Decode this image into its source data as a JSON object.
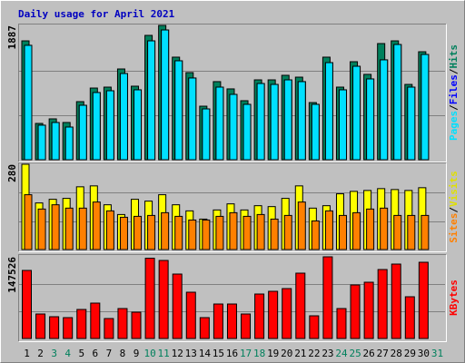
{
  "chart_data": [
    {
      "type": "bar",
      "title": "Daily usage for April 2021",
      "series": [
        {
          "name": "Hits",
          "color": "#00805c",
          "values": [
            1670,
            510,
            574,
            523,
            816,
            1007,
            1020,
            1275,
            1033,
            1747,
            1887,
            1441,
            1224,
            752,
            1097,
            995,
            829,
            1122,
            1122,
            1186,
            1160,
            803,
            1441,
            1020,
            1377,
            1199,
            1632,
            1670,
            1058,
            1517,
            0
          ]
        },
        {
          "name": "Files",
          "color": "#0000ff",
          "values": [
            1607,
            485,
            523,
            459,
            765,
            944,
            969,
            1211,
            982,
            1670,
            1823,
            1390,
            1148,
            714,
            1020,
            918,
            778,
            1071,
            1058,
            1122,
            1097,
            778,
            1364,
            982,
            1313,
            1135,
            1403,
            1619,
            1020,
            1479,
            0
          ]
        },
        {
          "name": "Pages",
          "color": "#00e0ff",
          "values": [
            1607,
            485,
            523,
            459,
            765,
            944,
            969,
            1211,
            982,
            1670,
            1823,
            1390,
            1148,
            714,
            1020,
            918,
            778,
            1071,
            1058,
            1122,
            1097,
            778,
            1364,
            982,
            1313,
            1135,
            1403,
            1619,
            1020,
            1479,
            0
          ]
        }
      ],
      "legend_separator": "/",
      "ylim": [
        0,
        1887
      ],
      "yticks": [
        1887
      ],
      "gridlines": [
        625,
        1250
      ]
    },
    {
      "type": "bar",
      "series": [
        {
          "name": "Visits",
          "color": "#ffff00",
          "values": [
            280,
            153,
            165,
            168,
            206,
            209,
            147,
            115,
            165,
            159,
            180,
            147,
            127,
            100,
            130,
            150,
            130,
            144,
            141,
            168,
            209,
            136,
            144,
            183,
            191,
            194,
            200,
            197,
            194,
            203,
            0
          ]
        },
        {
          "name": "Sites",
          "color": "#ff8000",
          "values": [
            180,
            133,
            147,
            136,
            136,
            156,
            127,
            106,
            109,
            112,
            121,
            109,
            97,
            97,
            109,
            121,
            109,
            115,
            100,
            112,
            156,
            94,
            127,
            112,
            121,
            133,
            136,
            112,
            112,
            112,
            0
          ]
        }
      ],
      "legend_separator": "/",
      "ylim": [
        0,
        280
      ],
      "yticks": [
        280
      ],
      "gridlines": [
        93,
        187
      ]
    },
    {
      "type": "bar",
      "categories": [
        "1",
        "2",
        "3",
        "4",
        "5",
        "6",
        "7",
        "8",
        "9",
        "10",
        "11",
        "12",
        "13",
        "14",
        "15",
        "16",
        "17",
        "18",
        "19",
        "20",
        "21",
        "22",
        "23",
        "24",
        "25",
        "26",
        "27",
        "28",
        "29",
        "30",
        "31"
      ],
      "category_colors": [
        "#000000",
        "#000000",
        "#00805c",
        "#00805c",
        "#000000",
        "#000000",
        "#000000",
        "#000000",
        "#000000",
        "#00805c",
        "#00805c",
        "#000000",
        "#000000",
        "#000000",
        "#000000",
        "#000000",
        "#00805c",
        "#00805c",
        "#000000",
        "#000000",
        "#000000",
        "#000000",
        "#000000",
        "#00805c",
        "#00805c",
        "#000000",
        "#000000",
        "#000000",
        "#000000",
        "#000000",
        "#00805c"
      ],
      "series": [
        {
          "name": "KBytes",
          "color": "#ff0000",
          "values": [
            122938,
            44258,
            39340,
            37700,
            52454,
            63928,
            36062,
            54093,
            47536,
            145000,
            140970,
            116381,
            83598,
            37700,
            62288,
            62288,
            44258,
            80320,
            85237,
            90155,
            118020,
            40980,
            147526,
            54093,
            96712,
            101630,
            124577,
            134412,
            75402,
            137690,
            0
          ]
        }
      ],
      "ylim": [
        0,
        147526
      ],
      "yticks": [
        147526
      ],
      "gridlines": [
        49175,
        98350
      ]
    }
  ]
}
